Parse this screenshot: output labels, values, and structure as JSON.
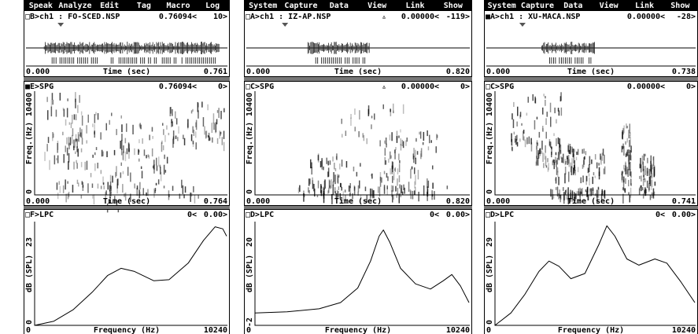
{
  "panels": [
    {
      "menu": [
        "Speak",
        "Analyze",
        "Edit",
        "Tag",
        "Macro",
        "Log"
      ],
      "waveform": {
        "header": [
          "□B>ch1 : FO-SCED.NSP",
          "0.76094<",
          "10>"
        ],
        "x_axis": [
          "0.000",
          "Time (sec)",
          "0.761"
        ]
      },
      "spectrogram": {
        "header": [
          "■E>SPG",
          "0.76094<",
          "0>"
        ],
        "y_axis": [
          "10400",
          "Freq.(Hz)",
          "0"
        ],
        "x_axis": [
          "0.000",
          "Time (sec)",
          "0.764"
        ]
      },
      "lpc": {
        "header": [
          "□F>LPC",
          "0<",
          "0.00>"
        ],
        "y_axis": [
          "23",
          "dB (SPL)",
          "0"
        ],
        "x_axis": [
          "0",
          "Frequency (Hz)",
          "10240"
        ]
      }
    },
    {
      "menu": [
        "System",
        "Capture",
        "Data",
        "View",
        "Link",
        "Show"
      ],
      "waveform": {
        "header": [
          "□A>ch1 : IZ-AP.NSP",
          "▵",
          "0.00000<",
          "-119>"
        ],
        "x_axis": [
          "0.000",
          "Time (sec)",
          "0.820"
        ]
      },
      "spectrogram": {
        "header": [
          "□C>SPG",
          "▵",
          "0.00000<",
          "0>"
        ],
        "y_axis": [
          "10400",
          "Freq.(Hz)",
          "0"
        ],
        "x_axis": [
          "0.000",
          "Time (sec)",
          "0.820"
        ]
      },
      "lpc": {
        "header": [
          "□D>LPC",
          "0<",
          "0.00>"
        ],
        "y_axis": [
          "20",
          "dB (SPL)",
          "-2"
        ],
        "x_axis": [
          "0",
          "Frequency (Hz)",
          "10240"
        ]
      }
    },
    {
      "menu": [
        "System",
        "Capture",
        "Data",
        "View",
        "Link",
        "Show"
      ],
      "waveform": {
        "header": [
          "■A>ch1 : XU-MACA.NSP",
          "0.00000<",
          "-28>"
        ],
        "x_axis": [
          "0.000",
          "Time (sec)",
          "0.738"
        ]
      },
      "spectrogram": {
        "header": [
          "□C>SPG",
          "0.00000<",
          "0>"
        ],
        "y_axis": [
          "10400",
          "Freq.(Hz)",
          "0"
        ],
        "x_axis": [
          "0.000",
          "Time (sec)",
          "0.741"
        ]
      },
      "lpc": {
        "header": [
          "□D>LPC",
          "0<",
          "0.00>"
        ],
        "y_axis": [
          "29",
          "dB (SPL)",
          "0"
        ],
        "x_axis": [
          "0",
          "Frequency (Hz)",
          "10240"
        ]
      }
    }
  ]
}
